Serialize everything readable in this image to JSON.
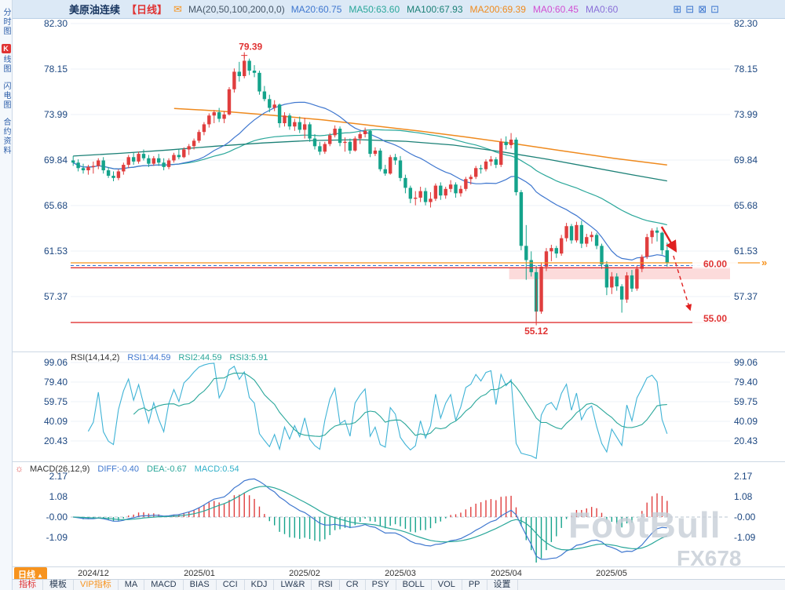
{
  "header": {
    "title": "美原油连续",
    "period": "【日线】",
    "settings": "MA(20,50,100,200,0,0)",
    "icons": {
      "mail": "✉",
      "tools": [
        "⊞",
        "⊟",
        "⊠",
        "⊡"
      ]
    },
    "mas": [
      {
        "text": "MA20:60.75",
        "color": "#3f77cf"
      },
      {
        "text": "MA50:63.60",
        "color": "#2aa79a"
      },
      {
        "text": "MA100:67.93",
        "color": "#1b8076"
      },
      {
        "text": "MA200:69.39",
        "color": "#ef8a1e"
      },
      {
        "text": "MA0:60.45",
        "color": "#d24fd2"
      },
      {
        "text": "MA0:60",
        "color": "#8a6fd8"
      }
    ]
  },
  "sidebar": {
    "items": [
      {
        "label": "分时图",
        "active": false
      },
      {
        "badge": "K",
        "label": "线图",
        "active": true
      },
      {
        "label": "闪电图",
        "active": false
      },
      {
        "label": "合约资料",
        "active": false
      }
    ]
  },
  "tabs": {
    "period": {
      "label": "日线",
      "arrow": "▲",
      "bg": "#f7931e"
    },
    "items": [
      {
        "label": "指标",
        "color": "#e03333"
      },
      {
        "label": "模板",
        "color": "#2b3d55"
      },
      {
        "label": "VIP指标",
        "color": "#f7931e"
      },
      {
        "label": "MA",
        "color": "#2b3d55"
      },
      {
        "label": "MACD",
        "color": "#2b3d55"
      },
      {
        "label": "BIAS",
        "color": "#2b3d55"
      },
      {
        "label": "CCI",
        "color": "#2b3d55"
      },
      {
        "label": "KDJ",
        "color": "#2b3d55"
      },
      {
        "label": "LW&R",
        "color": "#2b3d55"
      },
      {
        "label": "RSI",
        "color": "#2b3d55"
      },
      {
        "label": "CR",
        "color": "#2b3d55"
      },
      {
        "label": "PSY",
        "color": "#2b3d55"
      },
      {
        "label": "BOLL",
        "color": "#2b3d55"
      },
      {
        "label": "VOL",
        "color": "#2b3d55"
      },
      {
        "label": "PP",
        "color": "#2b3d55"
      },
      {
        "label": "设置",
        "color": "#2b3d55"
      }
    ]
  },
  "watermark": {
    "line1": "FootBull",
    "line2": "FX678"
  },
  "chart_data": {
    "type": "candlestick",
    "symbol": "美原油连续",
    "period": "日线",
    "columns": [
      "date",
      "open",
      "high",
      "low",
      "close"
    ],
    "price_axis": [
      "82.30",
      "78.15",
      "73.99",
      "69.84",
      "65.68",
      "61.53",
      "57.37"
    ],
    "x_labels": [
      {
        "text": "2024/12",
        "month": "12"
      },
      {
        "text": "2025/01",
        "month": "01"
      },
      {
        "text": "2025/02",
        "month": "02"
      },
      {
        "text": "2025/03",
        "month": "03"
      },
      {
        "text": "2025/04",
        "month": "04"
      },
      {
        "text": "2025/05",
        "month": "05"
      }
    ],
    "right_pad_slots": 12,
    "up_color": "#e03e3e",
    "down_color": "#14a38b",
    "candles": [
      [
        "11-25",
        69.8,
        70.2,
        69.3,
        69.6
      ],
      [
        "11-26",
        69.6,
        69.9,
        68.8,
        69.1
      ],
      [
        "11-27",
        69.1,
        69.5,
        68.6,
        68.9
      ],
      [
        "11-28",
        68.9,
        69.4,
        68.5,
        69.2
      ],
      [
        "12-02",
        69.2,
        69.7,
        68.6,
        69.3
      ],
      [
        "12-03",
        69.3,
        70.0,
        69.0,
        69.8
      ],
      [
        "12-04",
        69.8,
        70.1,
        68.6,
        68.9
      ],
      [
        "12-05",
        68.9,
        69.2,
        68.2,
        68.4
      ],
      [
        "12-06",
        68.4,
        68.8,
        67.9,
        68.2
      ],
      [
        "12-09",
        68.2,
        69.0,
        68.0,
        68.8
      ],
      [
        "12-10",
        68.8,
        69.6,
        68.5,
        69.4
      ],
      [
        "12-11",
        69.4,
        70.3,
        69.1,
        70.1
      ],
      [
        "12-12",
        70.1,
        70.5,
        69.4,
        69.7
      ],
      [
        "12-13",
        69.7,
        70.6,
        69.5,
        70.4
      ],
      [
        "12-16",
        70.4,
        70.8,
        69.8,
        70.0
      ],
      [
        "12-17",
        70.0,
        70.3,
        69.2,
        69.5
      ],
      [
        "12-18",
        69.5,
        70.2,
        69.3,
        70.0
      ],
      [
        "12-19",
        70.0,
        70.4,
        69.3,
        69.6
      ],
      [
        "12-20",
        69.6,
        70.0,
        68.9,
        69.2
      ],
      [
        "12-23",
        69.2,
        70.0,
        69.0,
        69.8
      ],
      [
        "12-24",
        69.8,
        70.5,
        69.6,
        70.3
      ],
      [
        "12-26",
        70.3,
        70.8,
        69.9,
        70.1
      ],
      [
        "12-27",
        70.1,
        71.0,
        70.0,
        70.8
      ],
      [
        "12-30",
        70.8,
        71.3,
        70.3,
        71.1
      ],
      [
        "12-31",
        71.1,
        71.8,
        70.8,
        71.6
      ],
      [
        "01-02",
        71.6,
        72.6,
        71.4,
        72.4
      ],
      [
        "01-03",
        72.4,
        73.3,
        72.1,
        73.1
      ],
      [
        "01-06",
        73.1,
        74.1,
        72.8,
        73.9
      ],
      [
        "01-07",
        73.9,
        74.4,
        73.2,
        74.2
      ],
      [
        "01-08",
        74.2,
        74.6,
        73.3,
        73.6
      ],
      [
        "01-09",
        73.6,
        74.3,
        73.2,
        74.0
      ],
      [
        "01-10",
        74.0,
        76.5,
        73.9,
        76.3
      ],
      [
        "01-13",
        76.3,
        78.2,
        76.0,
        77.9
      ],
      [
        "01-14",
        77.9,
        78.8,
        77.0,
        77.5
      ],
      [
        "01-15",
        77.5,
        79.39,
        77.3,
        78.9
      ],
      [
        "01-16",
        78.9,
        79.1,
        77.6,
        78.0
      ],
      [
        "01-17",
        78.0,
        78.5,
        77.4,
        77.8
      ],
      [
        "01-21",
        77.8,
        78.0,
        75.8,
        76.1
      ],
      [
        "01-22",
        76.1,
        76.6,
        75.2,
        75.4
      ],
      [
        "01-23",
        75.4,
        75.8,
        74.2,
        74.6
      ],
      [
        "01-24",
        74.6,
        75.3,
        74.3,
        74.9
      ],
      [
        "01-27",
        74.9,
        75.0,
        72.8,
        73.2
      ],
      [
        "01-28",
        73.2,
        74.2,
        72.9,
        73.9
      ],
      [
        "01-29",
        73.9,
        74.1,
        72.6,
        72.9
      ],
      [
        "01-30",
        72.9,
        73.6,
        72.5,
        73.3
      ],
      [
        "01-31",
        73.3,
        73.8,
        72.3,
        72.6
      ],
      [
        "02-03",
        72.6,
        73.7,
        71.8,
        73.1
      ],
      [
        "02-04",
        73.1,
        73.3,
        71.5,
        71.8
      ],
      [
        "02-05",
        71.8,
        72.2,
        70.8,
        71.1
      ],
      [
        "02-06",
        71.1,
        71.5,
        70.3,
        70.6
      ],
      [
        "02-07",
        70.6,
        71.5,
        70.4,
        71.3
      ],
      [
        "02-10",
        71.3,
        72.3,
        71.1,
        72.1
      ],
      [
        "02-11",
        72.1,
        73.0,
        71.9,
        72.7
      ],
      [
        "02-12",
        72.7,
        72.9,
        71.1,
        71.4
      ],
      [
        "02-13",
        71.4,
        71.9,
        70.6,
        71.5
      ],
      [
        "02-14",
        71.5,
        71.8,
        70.4,
        70.7
      ],
      [
        "02-18",
        70.7,
        72.0,
        70.6,
        71.8
      ],
      [
        "02-19",
        71.8,
        72.4,
        71.3,
        72.2
      ],
      [
        "02-20",
        72.2,
        72.8,
        71.9,
        72.5
      ],
      [
        "02-21",
        72.5,
        72.6,
        70.1,
        70.4
      ],
      [
        "02-24",
        70.4,
        71.0,
        70.2,
        70.7
      ],
      [
        "02-25",
        70.7,
        70.9,
        68.8,
        69.0
      ],
      [
        "02-26",
        69.0,
        69.4,
        68.4,
        68.6
      ],
      [
        "02-27",
        68.6,
        70.3,
        68.5,
        70.1
      ],
      [
        "02-28",
        70.1,
        70.4,
        69.4,
        69.8
      ],
      [
        "03-03",
        69.8,
        70.2,
        67.9,
        68.2
      ],
      [
        "03-04",
        68.2,
        68.5,
        66.8,
        67.3
      ],
      [
        "03-05",
        67.3,
        67.5,
        65.9,
        66.3
      ],
      [
        "03-06",
        66.3,
        67.0,
        65.7,
        66.4
      ],
      [
        "03-07",
        66.4,
        67.4,
        66.0,
        67.0
      ],
      [
        "03-10",
        67.0,
        67.3,
        65.7,
        66.0
      ],
      [
        "03-11",
        66.0,
        66.9,
        65.5,
        66.3
      ],
      [
        "03-12",
        66.3,
        67.7,
        66.1,
        67.5
      ],
      [
        "03-13",
        67.5,
        67.8,
        66.2,
        66.6
      ],
      [
        "03-14",
        66.6,
        67.4,
        66.3,
        67.2
      ],
      [
        "03-17",
        67.2,
        68.0,
        66.9,
        67.6
      ],
      [
        "03-18",
        67.6,
        67.8,
        66.4,
        66.8
      ],
      [
        "03-19",
        66.8,
        67.5,
        66.5,
        67.2
      ],
      [
        "03-20",
        67.2,
        68.3,
        67.0,
        68.1
      ],
      [
        "03-21",
        68.1,
        68.5,
        67.6,
        68.3
      ],
      [
        "03-24",
        68.3,
        69.3,
        68.1,
        69.1
      ],
      [
        "03-25",
        69.1,
        69.4,
        68.6,
        69.0
      ],
      [
        "03-26",
        69.0,
        69.9,
        68.8,
        69.7
      ],
      [
        "03-27",
        69.7,
        70.2,
        69.3,
        69.9
      ],
      [
        "03-28",
        69.9,
        70.1,
        69.1,
        69.4
      ],
      [
        "03-31",
        69.4,
        71.8,
        69.2,
        71.5
      ],
      [
        "04-01",
        71.5,
        72.0,
        70.8,
        71.2
      ],
      [
        "04-02",
        71.2,
        72.3,
        70.9,
        71.7
      ],
      [
        "04-03",
        71.7,
        71.9,
        66.6,
        66.9
      ],
      [
        "04-04",
        66.9,
        67.1,
        61.6,
        62.0
      ],
      [
        "04-07",
        62.0,
        63.9,
        58.9,
        60.7
      ],
      [
        "04-08",
        60.7,
        61.5,
        59.2,
        59.6
      ],
      [
        "04-09",
        59.6,
        60.2,
        55.12,
        56.0
      ],
      [
        "04-10",
        56.0,
        60.5,
        55.8,
        60.1
      ],
      [
        "04-11",
        60.1,
        61.8,
        59.7,
        61.5
      ],
      [
        "04-14",
        61.5,
        62.1,
        60.6,
        61.8
      ],
      [
        "04-15",
        61.8,
        62.0,
        60.9,
        61.3
      ],
      [
        "04-16",
        61.3,
        63.0,
        61.1,
        62.7
      ],
      [
        "04-17",
        62.7,
        64.1,
        62.4,
        63.8
      ],
      [
        "04-21",
        63.8,
        64.0,
        62.2,
        62.5
      ],
      [
        "04-22",
        62.5,
        64.2,
        62.3,
        63.9
      ],
      [
        "04-23",
        63.9,
        64.3,
        61.8,
        62.2
      ],
      [
        "04-24",
        62.2,
        63.1,
        61.9,
        62.8
      ],
      [
        "04-25",
        62.8,
        63.3,
        62.4,
        63.0
      ],
      [
        "04-28",
        63.0,
        63.2,
        61.7,
        62.0
      ],
      [
        "04-29",
        62.0,
        62.2,
        59.9,
        60.3
      ],
      [
        "04-30",
        60.3,
        60.6,
        57.5,
        58.2
      ],
      [
        "05-01",
        58.2,
        59.6,
        57.6,
        59.2
      ],
      [
        "05-02",
        59.2,
        59.5,
        57.9,
        58.3
      ],
      [
        "05-05",
        58.3,
        58.5,
        55.9,
        57.1
      ],
      [
        "05-06",
        57.1,
        59.6,
        56.8,
        59.3
      ],
      [
        "05-07",
        59.3,
        59.8,
        57.8,
        58.1
      ],
      [
        "05-08",
        58.1,
        60.2,
        57.9,
        59.9
      ],
      [
        "05-09",
        59.9,
        61.2,
        59.6,
        61.0
      ],
      [
        "05-12",
        61.0,
        63.1,
        60.8,
        62.8
      ],
      [
        "05-13",
        62.8,
        63.6,
        62.2,
        63.4
      ],
      [
        "05-14",
        63.4,
        63.7,
        62.4,
        63.2
      ],
      [
        "05-15",
        63.2,
        63.3,
        61.2,
        61.6
      ],
      [
        "05-16",
        61.6,
        62.3,
        60.1,
        60.45
      ]
    ],
    "ma": {
      "ma20": {
        "period": 20,
        "color": "#3f77cf"
      },
      "ma50": {
        "period": 50,
        "color": "#2aa79a"
      },
      "ma100": {
        "color": "#1b8076",
        "points": [
          [
            0,
            70.2
          ],
          [
            0.08,
            70.45
          ],
          [
            0.16,
            70.75
          ],
          [
            0.24,
            71.1
          ],
          [
            0.32,
            71.4
          ],
          [
            0.4,
            71.62
          ],
          [
            0.48,
            71.7
          ],
          [
            0.56,
            71.55
          ],
          [
            0.64,
            71.2
          ],
          [
            0.72,
            70.6
          ],
          [
            0.8,
            69.9
          ],
          [
            0.88,
            69.1
          ],
          [
            0.94,
            68.5
          ],
          [
            1,
            67.93
          ]
        ]
      },
      "ma200": {
        "color": "#ef8a1e",
        "points": [
          [
            0.17,
            74.55
          ],
          [
            0.25,
            74.3
          ],
          [
            0.33,
            73.95
          ],
          [
            0.42,
            73.5
          ],
          [
            0.5,
            73.0
          ],
          [
            0.58,
            72.5
          ],
          [
            0.66,
            71.95
          ],
          [
            0.74,
            71.35
          ],
          [
            0.82,
            70.7
          ],
          [
            0.91,
            70.0
          ],
          [
            1,
            69.39
          ]
        ]
      }
    },
    "annotations": {
      "high_label": "79.39",
      "low_label": "55.12",
      "resistance_60": {
        "value": 60.0,
        "label": "60.00",
        "color": "#e03333"
      },
      "support_55": {
        "value": 55.0,
        "label": "55.00",
        "color": "#e03333"
      },
      "dashed_price": 60.2,
      "orange_line": 60.45,
      "orange_marker": "»",
      "zone": {
        "from": 58.95,
        "to": 59.95,
        "x_start_frac": 0.665
      }
    },
    "rsi_panel": {
      "title": "RSI(14,14,2)",
      "values": [
        {
          "text": "RSI1:44.59",
          "color": "#3f77cf"
        },
        {
          "text": "RSI2:44.59",
          "color": "#2aa79a"
        },
        {
          "text": "RSI3:5.91",
          "color": "#2aa79a"
        }
      ],
      "axis": [
        "99.06",
        "79.40",
        "59.75",
        "40.09",
        "20.43"
      ],
      "line_colors": [
        "#3fb3d6",
        "#2aa79a"
      ]
    },
    "macd_panel": {
      "title": "MACD(26,12,9)",
      "icon": "☼",
      "values": [
        {
          "text": "DIFF:-0.40",
          "color": "#3f77cf"
        },
        {
          "text": "DEA:-0.67",
          "color": "#2aa79a"
        },
        {
          "text": "MACD:0.54",
          "color": "#31b0c9"
        }
      ],
      "axis": [
        "2.17",
        "1.08",
        "-0.00",
        "-1.09"
      ],
      "diff_color": "#3f77cf",
      "dea_color": "#2aa79a"
    }
  }
}
